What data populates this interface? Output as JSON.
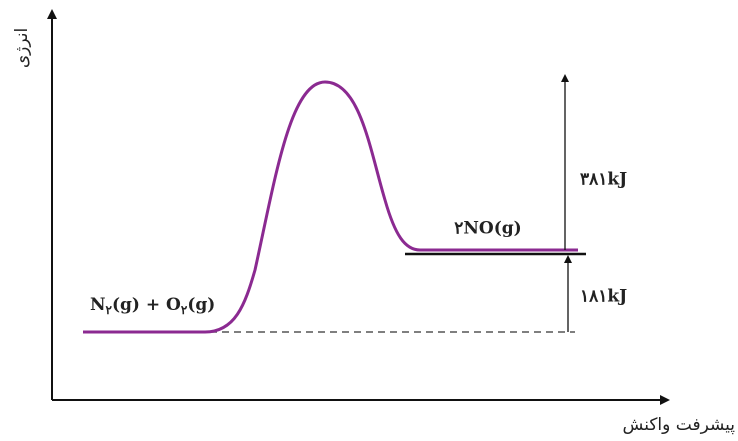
{
  "axes": {
    "y_label": "انرژی",
    "x_label": "پیشرفت واکنش"
  },
  "reactant": {
    "parts": [
      "N",
      "۲",
      "(g) + O",
      "۲",
      "(g)"
    ]
  },
  "product": "۲NO(g)",
  "activation_energy": "۳۸۱kJ",
  "reaction_energy": "۱۸۱kJ"
}
